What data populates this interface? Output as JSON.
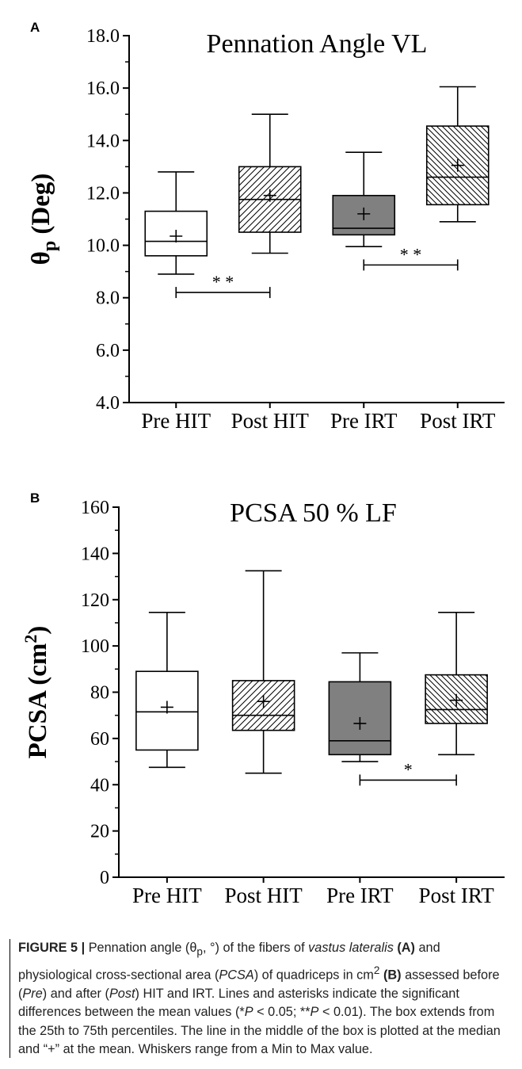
{
  "chart_data": [
    {
      "type": "box",
      "panel_label": "A",
      "title": "Pennation Angle VL",
      "ylabel": "θp (Deg)",
      "ylabel_main": "θ",
      "ylabel_sub": "p",
      "ylabel_rest": " (Deg)",
      "ylim": [
        4.0,
        18.0
      ],
      "yticks": [
        4.0,
        6.0,
        8.0,
        10.0,
        12.0,
        14.0,
        16.0,
        18.0
      ],
      "ytick_labels": [
        "4.0",
        "6.0",
        "8.0",
        "10.0",
        "12.0",
        "14.0",
        "16.0",
        "18.0"
      ],
      "categories": [
        "Pre HIT",
        "Post HIT",
        "Pre IRT",
        "Post IRT"
      ],
      "boxes": [
        {
          "name": "Pre HIT",
          "min": 8.9,
          "q1": 9.6,
          "median": 10.15,
          "q3": 11.3,
          "max": 12.8,
          "mean": 10.35,
          "fill": "white"
        },
        {
          "name": "Post HIT",
          "min": 9.7,
          "q1": 10.5,
          "median": 11.75,
          "q3": 13.0,
          "max": 15.0,
          "mean": 11.9,
          "fill": "hatch-forward"
        },
        {
          "name": "Pre IRT",
          "min": 9.95,
          "q1": 10.4,
          "median": 10.65,
          "q3": 11.9,
          "max": 13.55,
          "mean": 11.2,
          "fill": "gray"
        },
        {
          "name": "Post IRT",
          "min": 10.9,
          "q1": 11.55,
          "median": 12.6,
          "q3": 14.55,
          "max": 16.05,
          "mean": 13.05,
          "fill": "hatch-back"
        }
      ],
      "significance": [
        {
          "from": 0,
          "to": 1,
          "y": 8.2,
          "label": "* *"
        },
        {
          "from": 2,
          "to": 3,
          "y": 9.25,
          "label": "* *"
        }
      ]
    },
    {
      "type": "box",
      "panel_label": "B",
      "title": "PCSA 50 % LF",
      "ylabel": "PCSA (cm2)",
      "ylabel_main": "PCSA (cm",
      "ylabel_sup": "2",
      "ylabel_rest": ")",
      "ylim": [
        0,
        160
      ],
      "yticks": [
        0,
        20,
        40,
        60,
        80,
        100,
        120,
        140,
        160
      ],
      "ytick_labels": [
        "0",
        "20",
        "40",
        "60",
        "80",
        "100",
        "120",
        "140",
        "160"
      ],
      "categories": [
        "Pre HIT",
        "Post HIT",
        "Pre IRT",
        "Post IRT"
      ],
      "boxes": [
        {
          "name": "Pre HIT",
          "min": 47.5,
          "q1": 55.0,
          "median": 71.5,
          "q3": 89.0,
          "max": 114.5,
          "mean": 73.5,
          "fill": "white"
        },
        {
          "name": "Post HIT",
          "min": 45.0,
          "q1": 63.5,
          "median": 70.0,
          "q3": 85.0,
          "max": 132.5,
          "mean": 76.0,
          "fill": "hatch-forward"
        },
        {
          "name": "Pre IRT",
          "min": 50.0,
          "q1": 53.0,
          "median": 59.0,
          "q3": 84.5,
          "max": 97.0,
          "mean": 66.5,
          "fill": "gray"
        },
        {
          "name": "Post IRT",
          "min": 53.0,
          "q1": 66.5,
          "median": 72.5,
          "q3": 87.5,
          "max": 114.5,
          "mean": 76.5,
          "fill": "hatch-back"
        }
      ],
      "significance": [
        {
          "from": 2,
          "to": 3,
          "y": 42.0,
          "label": "*"
        }
      ]
    }
  ],
  "caption": {
    "figure_label": "FIGURE 5 |",
    "t1": " Pennation angle (θ",
    "t1_sub": "p",
    "t2": ", °) of the fibers of ",
    "t3_italic": "vastus lateralis",
    "t4_bold": " (A)",
    "t5": " and physiological cross-sectional area (",
    "t6_italic": "PCSA",
    "t7": ") of quadriceps in cm",
    "t7_sup": "2",
    "t8_bold": " (B)",
    "t9": " assessed before (",
    "t10_italic": "Pre",
    "t11": ") and after (",
    "t12_italic": "Post",
    "t13": ") HIT and IRT. Lines and asterisks indicate the significant differences between the mean values (*",
    "t14_italic": "P",
    "t15": " < 0.05; **",
    "t16_italic": "P",
    "t17": " < 0.01). The box extends from the 25th to 75th percentiles. The line in the middle of the box is plotted at the median and “+” at the mean. Whiskers range from a Min to Max value."
  }
}
